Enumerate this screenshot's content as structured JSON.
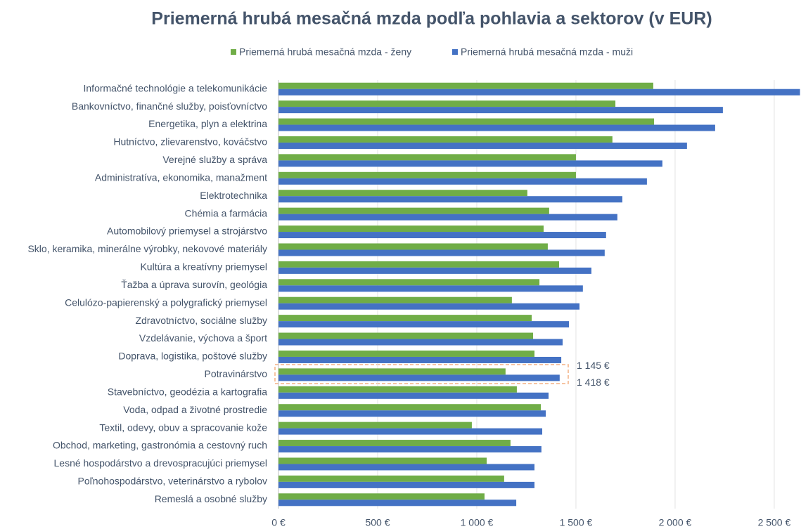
{
  "chart_data": {
    "type": "hbar",
    "title": "Priemerná hrubá mesačná mzda podľa pohlavia a sektorov (v EUR)",
    "categories": [
      "Informačné technológie a telekomunikácie",
      "Bankovníctvo, finančné služby, poisťovníctvo",
      "Energetika, plyn a elektrina",
      "Hutníctvo, zlievarenstvo, kováčstvo",
      "Verejné služby a správa",
      "Administratíva, ekonomika, manažment",
      "Elektrotechnika",
      "Chémia a farmácia",
      "Automobilový priemysel a strojárstvo",
      "Sklo, keramika, minerálne výrobky, nekovové materiály",
      "Kultúra a kreatívny priemysel",
      "Ťažba a úprava surovín, geológia",
      "Celulózo-papierenský a polygrafický priemysel",
      "Zdravotníctvo, sociálne služby",
      "Vzdelávanie, výchova a šport",
      "Doprava, logistika, poštové služby",
      "Potravinárstvo",
      "Stavebníctvo, geodézia a kartografia",
      "Voda, odpad a životné prostredie",
      "Textil, odevy, obuv a spracovanie kože",
      "Obchod, marketing, gastronómia a cestovný ruch",
      "Lesné hospodárstvo a drevospracujúci priemysel",
      "Poľnohospodárstvo, veterinárstvo a rybolov",
      "Remeslá a osobné služby"
    ],
    "series": [
      {
        "name": "Priemerná hrubá mesačná mzda - ženy",
        "color": "#70ad47",
        "values": [
          1890,
          1699,
          1894,
          1684,
          1500,
          1500,
          1255,
          1365,
          1337,
          1358,
          1415,
          1316,
          1177,
          1277,
          1284,
          1291,
          1145,
          1202,
          1323,
          975,
          1170,
          1050,
          1138,
          1039
        ],
        "value_labels": [
          null,
          null,
          null,
          null,
          null,
          null,
          null,
          null,
          null,
          null,
          null,
          null,
          null,
          null,
          null,
          null,
          "1 145 €",
          null,
          null,
          null,
          null,
          null,
          null,
          null
        ]
      },
      {
        "name": "Priemerná hrubá mesačná mzda - muži",
        "color": "#4472c4",
        "values": [
          2630,
          2241,
          2202,
          2060,
          1936,
          1858,
          1734,
          1709,
          1652,
          1645,
          1578,
          1535,
          1518,
          1465,
          1433,
          1426,
          1418,
          1362,
          1348,
          1330,
          1326,
          1291,
          1291,
          1199
        ],
        "value_labels": [
          null,
          null,
          null,
          null,
          null,
          null,
          null,
          null,
          null,
          null,
          null,
          null,
          null,
          null,
          null,
          null,
          "1 418 €",
          null,
          null,
          null,
          null,
          null,
          null,
          null
        ]
      }
    ],
    "xlim": [
      0,
      2635
    ],
    "xticks": [
      {
        "value": 0,
        "label": "0 €"
      },
      {
        "value": 500,
        "label": "500 €"
      },
      {
        "value": 1000,
        "label": "1 000 €"
      },
      {
        "value": 1500,
        "label": "1 500 €"
      },
      {
        "value": 2000,
        "label": "2 000 €"
      },
      {
        "value": 2500,
        "label": "2 500 €"
      }
    ],
    "grid": true
  }
}
